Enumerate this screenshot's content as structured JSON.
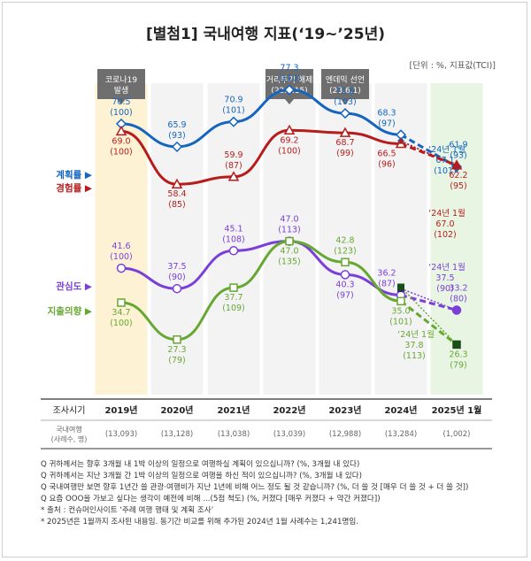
{
  "title": "[별첨1] 국내여행 지표(‘19~’25년)",
  "unit_note": "[단위 : %, 지표값(TCI)]",
  "events": [
    {
      "col": 0,
      "text": "코로나19\n발생"
    },
    {
      "col": 3,
      "text": "거리두기 해제\n(22.4.15)"
    },
    {
      "col": 4,
      "text": "엔데믹 선언\n(23.6.1)"
    }
  ],
  "table": {
    "row1_label": "조사시기",
    "row2_label": "국내여행\n(사례수, 명)",
    "years": [
      "2019년",
      "2020년",
      "2021년",
      "2022년",
      "2023년",
      "2024년",
      "2025년 1월"
    ],
    "counts": [
      "(13,093)",
      "(13,128)",
      "(13,038)",
      "(13,039)",
      "(12,988)",
      "(13,284)",
      "(1,002)"
    ]
  },
  "chart_data": {
    "type": "line",
    "categories": [
      "2019년",
      "2020년",
      "2021년",
      "2022년",
      "2023년",
      "2024년",
      "2025년 1월"
    ],
    "series": [
      {
        "name": "계획률",
        "color": "#1565c0",
        "marker": "diamond",
        "values": [
          70.5,
          65.9,
          70.9,
          77.3,
          72.6,
          68.3,
          61.9
        ],
        "indices": [
          "(100)",
          "(93)",
          "(101)",
          "(110)",
          "(103)",
          "(97)",
          "(93)"
        ],
        "jan2024": {
          "value": 67.1,
          "index": "(101)"
        }
      },
      {
        "name": "경험률",
        "color": "#b71c1c",
        "marker": "triangle",
        "values": [
          69.0,
          58.4,
          59.9,
          69.2,
          68.7,
          66.5,
          62.2
        ],
        "indices": [
          "(100)",
          "(85)",
          "(87)",
          "(100)",
          "(99)",
          "(96)",
          "(95)"
        ],
        "jan2024": {
          "value": 67.0,
          "index": "(102)"
        }
      },
      {
        "name": "관심도",
        "color": "#7b3fd9",
        "marker": "circle",
        "values": [
          41.6,
          37.5,
          45.1,
          47.0,
          40.3,
          36.2,
          33.2
        ],
        "indices": [
          "(100)",
          "(90)",
          "(108)",
          "(113)",
          "(97)",
          "(87)",
          "(80)"
        ],
        "jan2024": {
          "value": 37.5,
          "index": "(90)"
        }
      },
      {
        "name": "지출의향",
        "color": "#66a832",
        "marker": "square",
        "values": [
          34.7,
          27.3,
          37.7,
          47.0,
          42.8,
          35.0,
          26.3
        ],
        "indices": [
          "(100)",
          "(79)",
          "(109)",
          "(135)",
          "(123)",
          "(101)",
          "(79)"
        ],
        "jan2024": {
          "value": 37.8,
          "index": "(113)"
        }
      }
    ],
    "jan2024_label": "‘24년 1월",
    "title": "국내여행 지표",
    "ylim": [
      20,
      82
    ],
    "grid": false
  },
  "notes": [
    "Q 귀하께서는 향후 3개월 내 1박 이상의 일정으로 여행하실 계획이 있으십니까? (%, 3개월 내 있다)",
    "Q 귀하께서는 지난 3개월 간 1박 이상의 일정으로 여행을 하신 적이 있으십니까? (%, 3개월 내 있다)",
    "Q 국내여행만 보면 향후 1년간 쓸 관광·여행비가 지난 1년에 비해 어느 정도 될 것 같습니까? (%, 더 쓸 것 [매우 더 쓸 것 + 더 쓸 것])",
    "Q 요즘 OOO을 가보고 싶다는 생각이 예전에 비해 ...(5점 척도) (%, 커졌다 [매우 커졌다 + 약간 커졌다])",
    "* 출처 : 컨슈머인사이트 ‘주례 여행 행태 및 계획 조사’",
    "* 2025년은 1월까지 조사된 내용임. 동기간 비교를 위해 추가된 2024년 1월 사례수는 1,241명임."
  ]
}
